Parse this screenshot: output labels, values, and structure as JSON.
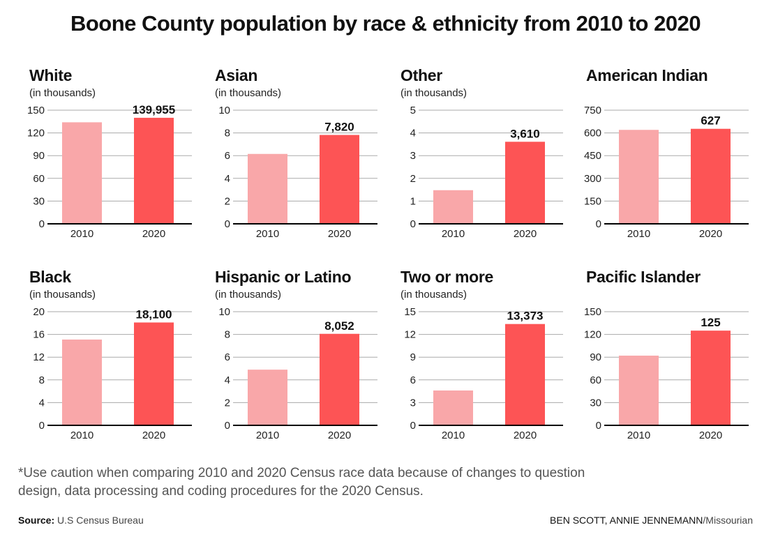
{
  "title": "Boone County population by race & ethnicity from 2010 to 2020",
  "chart_data": [
    {
      "type": "bar",
      "title": "White",
      "subtitle": "(in thousands)",
      "categories": [
        "2010",
        "2020"
      ],
      "values": [
        134,
        139.955
      ],
      "data_label": "139,955",
      "yticks": [
        0,
        30,
        60,
        90,
        120,
        150
      ],
      "ylim": [
        0,
        150
      ],
      "grid": true
    },
    {
      "type": "bar",
      "title": "Asian",
      "subtitle": "(in thousands)",
      "categories": [
        "2010",
        "2020"
      ],
      "values": [
        6.15,
        7.82
      ],
      "data_label": "7,820",
      "yticks": [
        0,
        2,
        4,
        6,
        8,
        10
      ],
      "ylim": [
        0,
        10
      ],
      "grid": true
    },
    {
      "type": "bar",
      "title": "Other",
      "subtitle": "(in thousands)",
      "categories": [
        "2010",
        "2020"
      ],
      "values": [
        1.48,
        3.61
      ],
      "data_label": "3,610",
      "yticks": [
        0,
        1,
        2,
        3,
        4,
        5
      ],
      "ylim": [
        0,
        5
      ],
      "grid": true
    },
    {
      "type": "bar",
      "title": "American Indian",
      "subtitle": "",
      "categories": [
        "2010",
        "2020"
      ],
      "values": [
        620,
        627
      ],
      "data_label": "627",
      "yticks": [
        0,
        150,
        300,
        450,
        600,
        750
      ],
      "ylim": [
        0,
        750
      ],
      "grid": true
    },
    {
      "type": "bar",
      "title": "Black",
      "subtitle": "(in thousands)",
      "categories": [
        "2010",
        "2020"
      ],
      "values": [
        15.1,
        18.1
      ],
      "data_label": "18,100",
      "yticks": [
        0,
        4,
        8,
        12,
        16,
        20
      ],
      "ylim": [
        0,
        20
      ],
      "grid": true
    },
    {
      "type": "bar",
      "title": "Hispanic or Latino",
      "subtitle": "(in thousands)",
      "categories": [
        "2010",
        "2020"
      ],
      "values": [
        4.9,
        8.052
      ],
      "data_label": "8,052",
      "yticks": [
        0,
        2,
        4,
        6,
        8,
        10
      ],
      "ylim": [
        0,
        10
      ],
      "grid": true
    },
    {
      "type": "bar",
      "title": "Two or more",
      "subtitle": "(in thousands)",
      "categories": [
        "2010",
        "2020"
      ],
      "values": [
        4.6,
        13.373
      ],
      "data_label": "13,373",
      "yticks": [
        0,
        3,
        6,
        9,
        12,
        15
      ],
      "ylim": [
        0,
        15
      ],
      "grid": true
    },
    {
      "type": "bar",
      "title": "Pacific Islander",
      "subtitle": "",
      "categories": [
        "2010",
        "2020"
      ],
      "values": [
        92,
        125
      ],
      "data_label": "125",
      "yticks": [
        0,
        30,
        60,
        90,
        120,
        150
      ],
      "ylim": [
        0,
        150
      ],
      "grid": true
    }
  ],
  "colors": {
    "bar_2010": "#f9a7a9",
    "bar_2020": "#fd5455",
    "grid": "#aaaaaa",
    "axis": "#000000"
  },
  "footnote": "*Use caution when comparing 2010 and 2020 Census race data because of changes to question design, data processing and coding procedures for the 2020 Census.",
  "source": {
    "label": "Source:",
    "value": "U.S Census Bureau"
  },
  "credit": {
    "names": "BEN SCOTT, ANNIE JENNEMANN",
    "outlet": "/Missourian"
  }
}
